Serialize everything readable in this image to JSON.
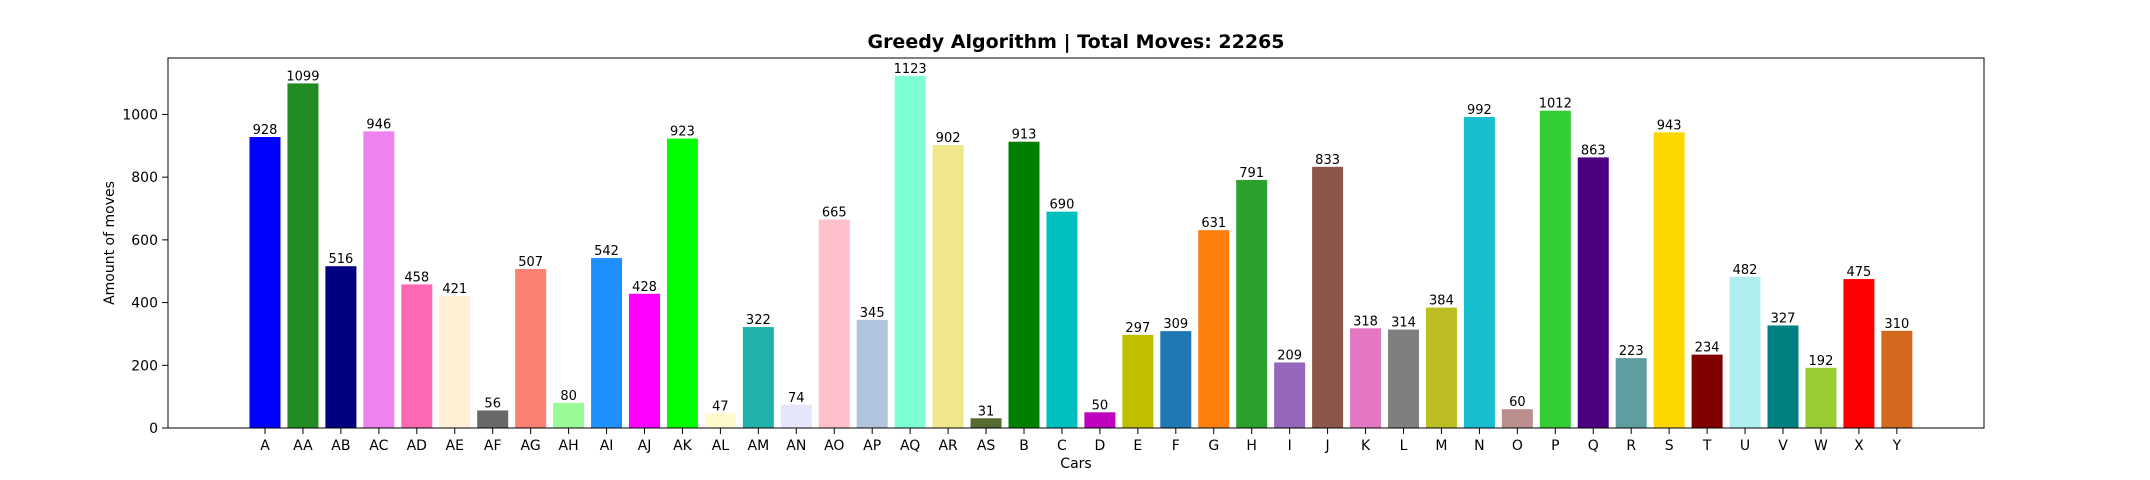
{
  "chart_data": {
    "type": "bar",
    "title": "Greedy Algorithm | Total Moves: 22265",
    "xlabel": "Cars",
    "ylabel": "Amount of moves",
    "ylim": [
      0,
      1180
    ],
    "yticks": [
      0,
      200,
      400,
      600,
      800,
      1000
    ],
    "grid": false,
    "categories": [
      "A",
      "AA",
      "AB",
      "AC",
      "AD",
      "AE",
      "AF",
      "AG",
      "AH",
      "AI",
      "AJ",
      "AK",
      "AL",
      "AM",
      "AN",
      "AO",
      "AP",
      "AQ",
      "AR",
      "AS",
      "B",
      "C",
      "D",
      "E",
      "F",
      "G",
      "H",
      "I",
      "J",
      "K",
      "L",
      "M",
      "N",
      "O",
      "P",
      "Q",
      "R",
      "S",
      "T",
      "U",
      "V",
      "W",
      "X",
      "Y"
    ],
    "values": [
      928,
      1099,
      516,
      946,
      458,
      421,
      56,
      507,
      80,
      542,
      428,
      923,
      47,
      322,
      74,
      665,
      345,
      1123,
      902,
      31,
      913,
      690,
      50,
      297,
      309,
      631,
      791,
      209,
      833,
      318,
      314,
      384,
      992,
      60,
      1012,
      863,
      223,
      943,
      234,
      482,
      327,
      192,
      475,
      310
    ],
    "colors": [
      "#0000ff",
      "#228b22",
      "#000080",
      "#ee82ee",
      "#ff69b4",
      "#ffefd5",
      "#696969",
      "#fa8072",
      "#98fb98",
      "#1e90ff",
      "#ff00ff",
      "#00ff00",
      "#fffacd",
      "#20b2aa",
      "#e6e6fa",
      "#ffc0cb",
      "#b0c4de",
      "#7fffd4",
      "#f0e68c",
      "#556b2f",
      "#008000",
      "#00bfbf",
      "#bf00bf",
      "#bfbf00",
      "#1f77b4",
      "#ff7f0e",
      "#2ca02c",
      "#9467bd",
      "#8c564b",
      "#e377c2",
      "#7f7f7f",
      "#bcbd22",
      "#17becf",
      "#bc8f8f",
      "#32cd32",
      "#4b0082",
      "#5f9ea0",
      "#ffd700",
      "#800000",
      "#afeeee",
      "#008080",
      "#9acd32",
      "#ff0000",
      "#d2691e"
    ]
  }
}
